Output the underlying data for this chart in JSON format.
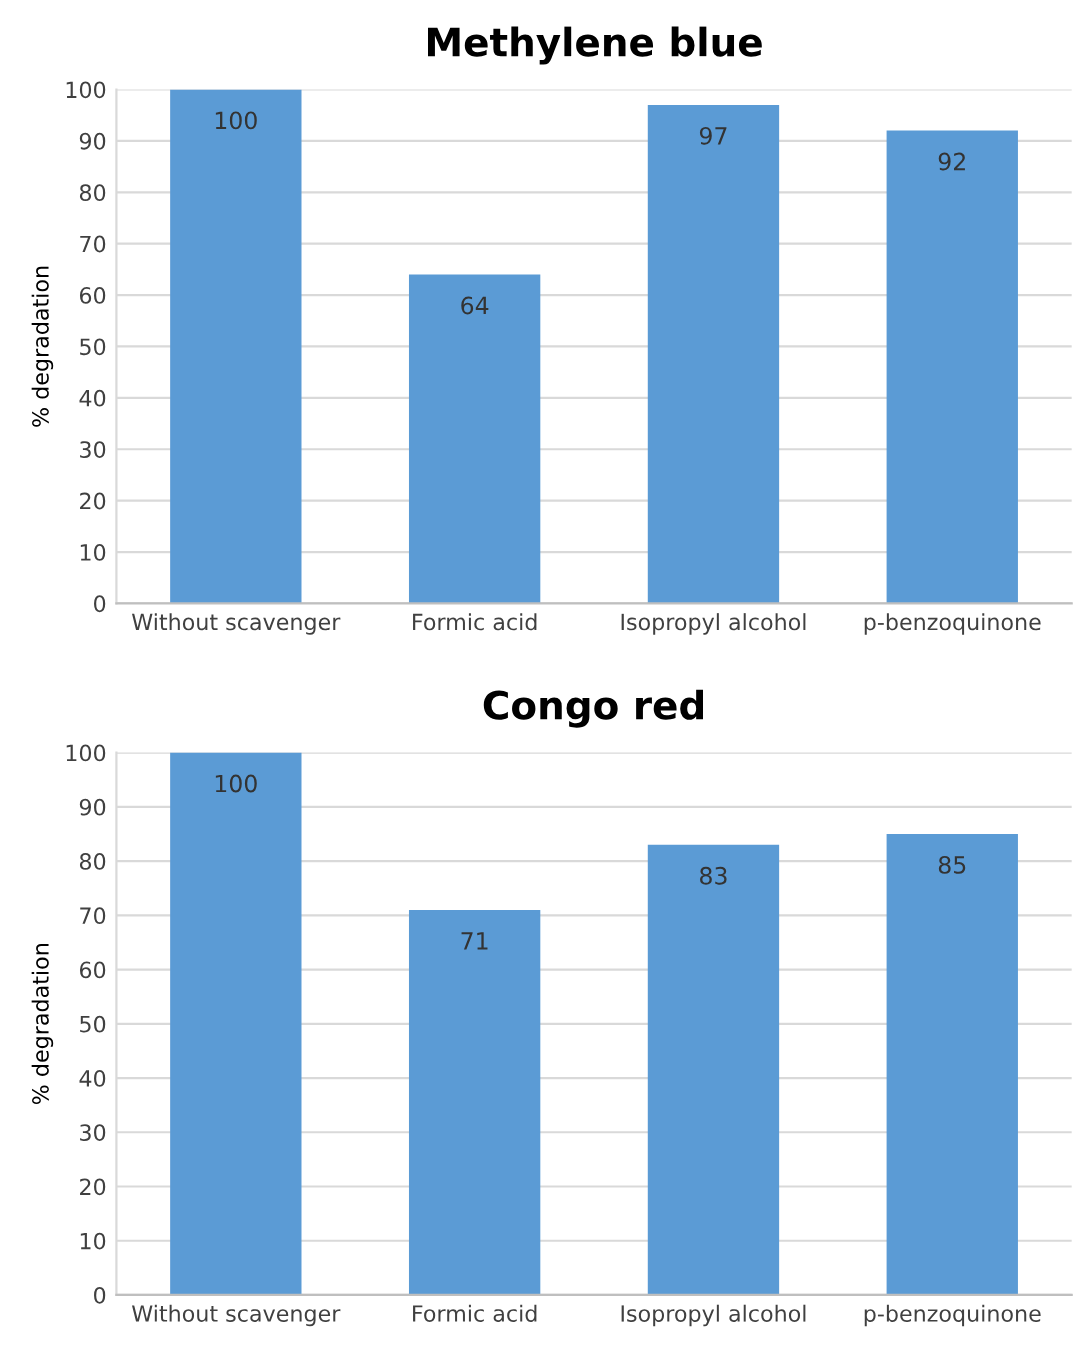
{
  "chart_data": [
    {
      "type": "bar",
      "title": "Methylene blue",
      "ylabel": "% degradation",
      "categories": [
        "Without scavenger",
        "Formic acid",
        "Isopropyl alcohol",
        "p-benzoquinone"
      ],
      "values": [
        100,
        64,
        97,
        92
      ],
      "color": "#5b9bd5",
      "ylim": [
        0,
        100
      ],
      "yticks": [
        0,
        10,
        20,
        30,
        40,
        50,
        60,
        70,
        80,
        90,
        100
      ],
      "grid": "y",
      "data_labels": true
    },
    {
      "type": "bar",
      "title": "Congo red",
      "ylabel": "% degradation",
      "categories": [
        "Without scavenger",
        "Formic acid",
        "Isopropyl alcohol",
        "p-benzoquinone"
      ],
      "values": [
        100,
        71,
        83,
        85
      ],
      "color": "#5b9bd5",
      "ylim": [
        0,
        100
      ],
      "yticks": [
        0,
        10,
        20,
        30,
        40,
        50,
        60,
        70,
        80,
        90,
        100
      ],
      "grid": "y",
      "data_labels": true
    }
  ]
}
